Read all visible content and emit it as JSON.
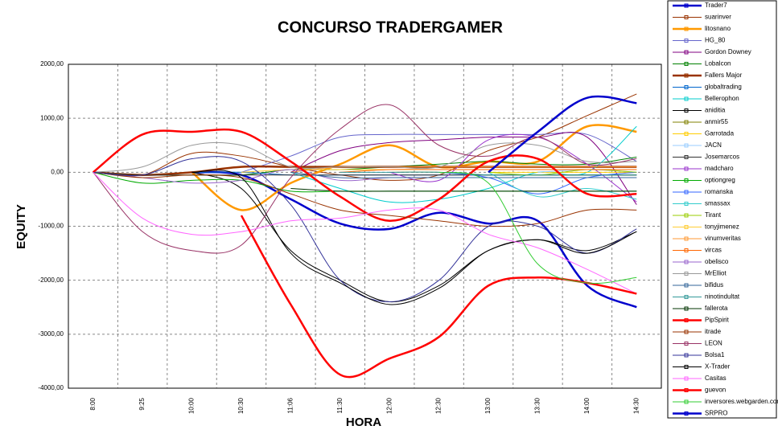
{
  "chart_data": {
    "type": "line",
    "title": "CONCURSO TRADERGAMER",
    "x_label": "HORA",
    "y_label": "EQUITY",
    "categories": [
      "8:00",
      "9:25",
      "10:00",
      "10:30",
      "11:06",
      "11:30",
      "12:00",
      "12:30",
      "13:00",
      "13:30",
      "14:00",
      "14:30"
    ],
    "ylim": [
      -4000,
      2000
    ],
    "yticks": [
      {
        "value": 2000,
        "label": "2000,00"
      },
      {
        "value": 1000,
        "label": "1000,00"
      },
      {
        "value": 0,
        "label": "0,00"
      },
      {
        "value": -1000,
        "label": "-1000,00"
      },
      {
        "value": -2000,
        "label": "-2000,00"
      },
      {
        "value": -3000,
        "label": "-3000,00"
      },
      {
        "value": -4000,
        "label": "-4000,00"
      }
    ],
    "grid": true,
    "smooth": true,
    "legend": "right",
    "series": [
      {
        "name": "Trader7",
        "color": "#0000cc",
        "thick": true,
        "values": [
          null,
          null,
          0,
          -50,
          -500,
          -950,
          -1050,
          -750,
          -950,
          -900,
          -2100,
          -2500
        ]
      },
      {
        "name": "suarinver",
        "color": "#993300",
        "values": [
          0,
          -50,
          350,
          300,
          100,
          -50,
          -150,
          -50,
          400,
          650,
          1050,
          1450
        ]
      },
      {
        "name": "litosnano",
        "color": "#ff9900",
        "thick": true,
        "values": [
          null,
          null,
          0,
          -700,
          -200,
          150,
          500,
          100,
          200,
          200,
          850,
          750
        ]
      },
      {
        "name": "HG_80",
        "color": "#6666cc",
        "values": [
          null,
          null,
          null,
          0,
          300,
          650,
          700,
          700,
          700,
          700,
          700,
          200
        ]
      },
      {
        "name": "Gordon Downey",
        "color": "#800080",
        "values": [
          null,
          null,
          null,
          null,
          0,
          400,
          550,
          600,
          650,
          650,
          650,
          -600
        ]
      },
      {
        "name": "Lobalcon",
        "color": "#008000",
        "values": [
          0,
          -50,
          -50,
          -50,
          50,
          50,
          100,
          150,
          200,
          150,
          150,
          280
        ]
      },
      {
        "name": "Fallers Major",
        "color": "#993300",
        "thick": true,
        "values": [
          0,
          -50,
          0,
          100,
          100,
          100,
          100,
          100,
          100,
          100,
          100,
          100
        ]
      },
      {
        "name": "globaltrading",
        "color": "#0066cc",
        "values": [
          null,
          null,
          0,
          0,
          -50,
          -50,
          -50,
          -50,
          -50,
          -50,
          -50,
          -50
        ]
      },
      {
        "name": "Bellerophon",
        "color": "#00cccc",
        "values": [
          null,
          null,
          null,
          null,
          0,
          -300,
          -550,
          -500,
          -300,
          0,
          0,
          850
        ]
      },
      {
        "name": "aniditia",
        "color": "#000000",
        "values": [
          null,
          null,
          0,
          -300,
          -1450,
          -2000,
          -2400,
          -2100,
          -1450,
          -1250,
          -1450,
          -1100
        ]
      },
      {
        "name": "anmir55",
        "color": "#808000",
        "values": [
          null,
          null,
          null,
          null,
          null,
          null,
          0,
          0,
          -50,
          -50,
          -50,
          -50
        ]
      },
      {
        "name": "Garrotada",
        "color": "#ffcc00",
        "values": [
          null,
          null,
          null,
          null,
          null,
          null,
          null,
          null,
          0,
          0,
          0,
          0
        ]
      },
      {
        "name": "JACN",
        "color": "#99ccff",
        "values": [
          null,
          null,
          null,
          null,
          null,
          null,
          null,
          null,
          null,
          0,
          50,
          0
        ]
      },
      {
        "name": "Josemarcos",
        "color": "#333333",
        "values": [
          0,
          -50,
          -50,
          -50,
          -50,
          -50,
          -50,
          -50,
          -50,
          -50,
          -50,
          -50
        ]
      },
      {
        "name": "madcharo",
        "color": "#9933cc",
        "values": [
          null,
          null,
          null,
          null,
          null,
          null,
          0,
          -150,
          600,
          650,
          150,
          -550
        ]
      },
      {
        "name": "optiongreg",
        "color": "#00aa00",
        "values": [
          0,
          -200,
          -150,
          -150,
          -350,
          -350,
          -350,
          -350,
          -350,
          -350,
          -350,
          -350
        ]
      },
      {
        "name": "romanska",
        "color": "#3366ff",
        "values": [
          null,
          null,
          null,
          null,
          null,
          null,
          null,
          0,
          -100,
          -400,
          -100,
          0
        ]
      },
      {
        "name": "smassax",
        "color": "#33cccc",
        "values": [
          null,
          null,
          null,
          null,
          null,
          null,
          null,
          null,
          0,
          -450,
          -300,
          -500
        ]
      },
      {
        "name": "Tirant",
        "color": "#99cc00",
        "values": [
          null,
          null,
          null,
          null,
          null,
          null,
          null,
          null,
          0,
          -50,
          50,
          0
        ]
      },
      {
        "name": "tonyjimenez",
        "color": "#ffcc33",
        "values": [
          null,
          null,
          null,
          0,
          50,
          50,
          50,
          50,
          50,
          50,
          50,
          50
        ]
      },
      {
        "name": "vinumveritas",
        "color": "#ff9933",
        "values": [
          null,
          null,
          null,
          null,
          0,
          100,
          100,
          100,
          100,
          100,
          100,
          100
        ]
      },
      {
        "name": "vircas",
        "color": "#ff6600",
        "values": [
          null,
          null,
          null,
          null,
          null,
          0,
          50,
          50,
          50,
          50,
          50,
          50
        ]
      },
      {
        "name": "obelisco",
        "color": "#9966cc",
        "values": [
          0,
          -100,
          -200,
          -150,
          50,
          -150,
          -100,
          -100,
          -100,
          -100,
          -100,
          -100
        ]
      },
      {
        "name": "MrElliot",
        "color": "#999999",
        "values": [
          0,
          100,
          500,
          500,
          100,
          100,
          100,
          100,
          500,
          500,
          200,
          200
        ]
      },
      {
        "name": "bifidus",
        "color": "#336699",
        "values": [
          null,
          null,
          null,
          null,
          0,
          -100,
          -100,
          -100,
          -100,
          -100,
          -100,
          -100
        ]
      },
      {
        "name": "ninotindultat",
        "color": "#339999",
        "values": [
          null,
          null,
          null,
          null,
          null,
          0,
          0,
          0,
          -50,
          -50,
          -50,
          -50
        ]
      },
      {
        "name": "fallerota",
        "color": "#003300",
        "values": [
          null,
          null,
          null,
          null,
          -300,
          -350,
          -350,
          -350,
          -350,
          -350,
          -350,
          -350
        ]
      },
      {
        "name": "PipSpirit",
        "color": "#ff0000",
        "thick": true,
        "values": [
          0,
          700,
          750,
          750,
          200,
          -450,
          -900,
          -500,
          200,
          250,
          -400,
          -400
        ]
      },
      {
        "name": "itrade",
        "color": "#993300",
        "values": [
          0,
          -100,
          -50,
          -100,
          -400,
          -700,
          -800,
          -900,
          -1000,
          -950,
          -700,
          -700
        ]
      },
      {
        "name": "LEON",
        "color": "#993366",
        "values": [
          0,
          -1100,
          -1450,
          -1350,
          -100,
          800,
          1250,
          500,
          300,
          650,
          150,
          250
        ]
      },
      {
        "name": "Bolsa1",
        "color": "#333399",
        "values": [
          0,
          -50,
          250,
          200,
          -600,
          -2000,
          -2400,
          -2000,
          -1000,
          -1000,
          -1500,
          -1050
        ]
      },
      {
        "name": "X-Trader",
        "color": "#000000",
        "values": [
          null,
          null,
          0,
          -100,
          -1500,
          -2050,
          -2450,
          -2150,
          -1450,
          -1250,
          -1500,
          -1100
        ]
      },
      {
        "name": "Casitas",
        "color": "#ff66ff",
        "values": [
          0,
          -850,
          -1150,
          -1100,
          -900,
          -850,
          -700,
          -700,
          -1150,
          -1400,
          -1800,
          -2250
        ]
      },
      {
        "name": "guevon",
        "color": "#ff0000",
        "thick": true,
        "values": [
          null,
          null,
          null,
          -800,
          -2450,
          -3750,
          -3450,
          -3050,
          -2100,
          -1950,
          -2050,
          -2250
        ]
      },
      {
        "name": "inversores.webgarden.com",
        "color": "#33cc33",
        "values": [
          null,
          null,
          null,
          null,
          null,
          null,
          null,
          0,
          -200,
          -1700,
          -2050,
          -1950
        ]
      },
      {
        "name": "SRPRO",
        "color": "#0000cc",
        "thick": true,
        "values": [
          null,
          null,
          null,
          null,
          null,
          null,
          null,
          null,
          0,
          750,
          1380,
          1280
        ]
      }
    ]
  }
}
